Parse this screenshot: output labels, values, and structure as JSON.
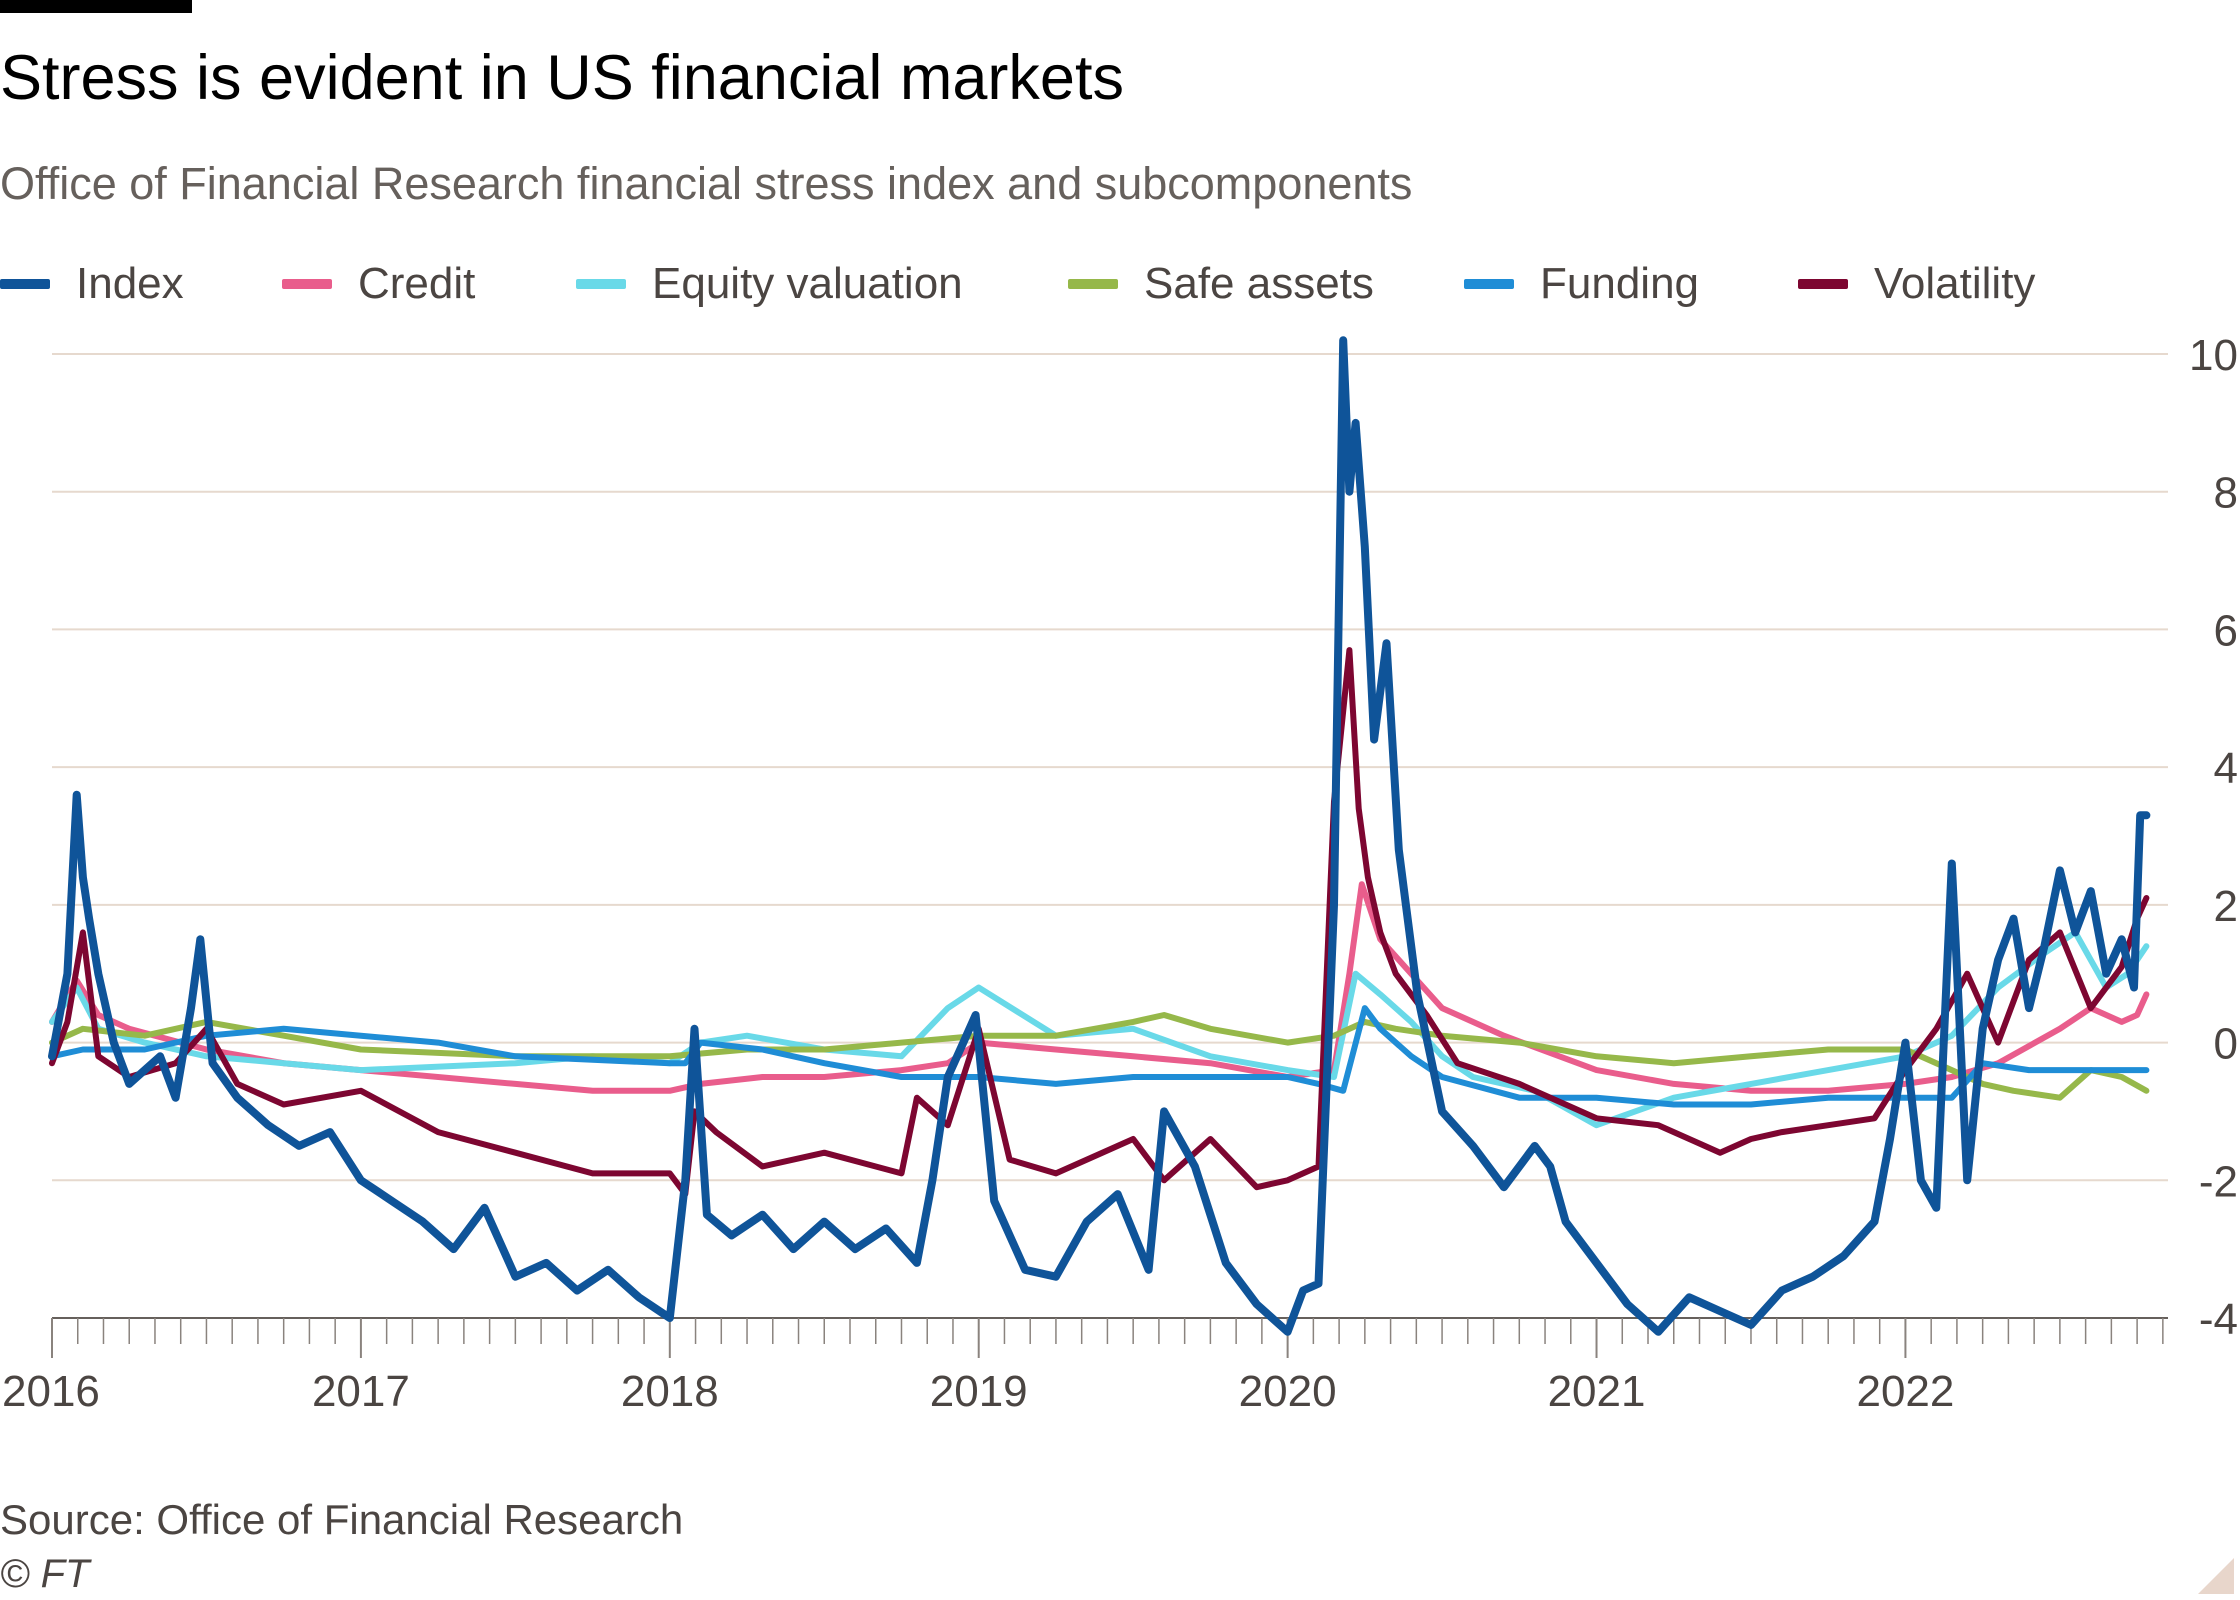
{
  "title": "Stress is evident in US financial markets",
  "subtitle": "Office of Financial Research financial stress index and subcomponents",
  "source": "Source: Office of Financial Research",
  "copyright": "© FT",
  "legend": [
    {
      "name": "Index",
      "color": "#0f5499"
    },
    {
      "name": "Credit",
      "color": "#e95d8c"
    },
    {
      "name": "Equity valuation",
      "color": "#69d9e8"
    },
    {
      "name": "Safe assets",
      "color": "#96b84a"
    },
    {
      "name": "Funding",
      "color": "#1f8dd6"
    },
    {
      "name": "Volatility",
      "color": "#7d0631"
    }
  ],
  "chart_data": {
    "type": "line",
    "title": "Stress is evident in US financial markets",
    "subtitle": "Office of Financial Research financial stress index and subcomponents",
    "xlabel": "",
    "ylabel": "",
    "xlim": [
      2016.0,
      2022.85
    ],
    "ylim": [
      -4,
      10
    ],
    "yticks": [
      -4,
      -2,
      0,
      2,
      4,
      6,
      8,
      10
    ],
    "ytick_labels": [
      "-4",
      "-2",
      "0",
      "2",
      "4",
      "6",
      "8",
      "10"
    ],
    "xticks": [
      2016,
      2017,
      2018,
      2019,
      2020,
      2021,
      2022
    ],
    "xtick_labels": [
      "2016",
      "2017",
      "2018",
      "2019",
      "2020",
      "2021",
      "2022"
    ],
    "grid": "horizontal",
    "legend_position": "top",
    "series": [
      {
        "name": "Credit",
        "color": "#e95d8c",
        "x": [
          2016.0,
          2016.08,
          2016.15,
          2016.25,
          2016.5,
          2016.75,
          2017.0,
          2017.5,
          2017.75,
          2018.0,
          2018.1,
          2018.3,
          2018.5,
          2018.75,
          2018.9,
          2019.0,
          2019.25,
          2019.5,
          2019.75,
          2020.0,
          2020.15,
          2020.2,
          2020.24,
          2020.3,
          2020.4,
          2020.5,
          2020.7,
          2021.0,
          2021.25,
          2021.5,
          2021.75,
          2022.0,
          2022.15,
          2022.3,
          2022.5,
          2022.6,
          2022.7,
          2022.75,
          2022.78
        ],
        "values": [
          0.3,
          0.9,
          0.4,
          0.2,
          -0.1,
          -0.3,
          -0.4,
          -0.6,
          -0.7,
          -0.7,
          -0.6,
          -0.5,
          -0.5,
          -0.4,
          -0.3,
          0.0,
          -0.1,
          -0.2,
          -0.3,
          -0.5,
          -0.4,
          1.0,
          2.3,
          1.5,
          1.0,
          0.5,
          0.1,
          -0.4,
          -0.6,
          -0.7,
          -0.7,
          -0.6,
          -0.5,
          -0.3,
          0.2,
          0.5,
          0.3,
          0.4,
          0.7
        ]
      },
      {
        "name": "Equity valuation",
        "color": "#69d9e8",
        "x": [
          2016.0,
          2016.08,
          2016.15,
          2016.3,
          2016.5,
          2016.75,
          2017.0,
          2017.5,
          2017.75,
          2018.0,
          2018.1,
          2018.25,
          2018.5,
          2018.75,
          2018.9,
          2019.0,
          2019.25,
          2019.5,
          2019.75,
          2020.0,
          2020.15,
          2020.22,
          2020.3,
          2020.4,
          2020.5,
          2020.6,
          2020.8,
          2021.0,
          2021.25,
          2021.5,
          2021.75,
          2022.0,
          2022.15,
          2022.3,
          2022.45,
          2022.55,
          2022.65,
          2022.72,
          2022.78
        ],
        "values": [
          0.3,
          0.8,
          0.2,
          0.0,
          -0.2,
          -0.3,
          -0.4,
          -0.3,
          -0.2,
          -0.3,
          0.0,
          0.1,
          -0.1,
          -0.2,
          0.5,
          0.8,
          0.1,
          0.2,
          -0.2,
          -0.4,
          -0.5,
          1.0,
          0.7,
          0.3,
          -0.2,
          -0.5,
          -0.7,
          -1.2,
          -0.8,
          -0.6,
          -0.4,
          -0.2,
          0.1,
          0.8,
          1.3,
          1.6,
          0.8,
          1.0,
          1.4
        ]
      },
      {
        "name": "Safe assets",
        "color": "#96b84a",
        "x": [
          2016.0,
          2016.1,
          2016.3,
          2016.5,
          2016.75,
          2017.0,
          2017.5,
          2018.0,
          2018.25,
          2018.5,
          2018.75,
          2019.0,
          2019.25,
          2019.5,
          2019.6,
          2019.75,
          2020.0,
          2020.15,
          2020.25,
          2020.35,
          2020.5,
          2020.75,
          2021.0,
          2021.25,
          2021.5,
          2021.75,
          2022.0,
          2022.15,
          2022.25,
          2022.35,
          2022.5,
          2022.6,
          2022.7,
          2022.78
        ],
        "values": [
          0.0,
          0.2,
          0.1,
          0.3,
          0.1,
          -0.1,
          -0.2,
          -0.2,
          -0.1,
          -0.1,
          0.0,
          0.1,
          0.1,
          0.3,
          0.4,
          0.2,
          0.0,
          0.1,
          0.3,
          0.2,
          0.1,
          0.0,
          -0.2,
          -0.3,
          -0.2,
          -0.1,
          -0.1,
          -0.4,
          -0.6,
          -0.7,
          -0.8,
          -0.4,
          -0.5,
          -0.7
        ]
      },
      {
        "name": "Funding",
        "color": "#1f8dd6",
        "x": [
          2016.0,
          2016.1,
          2016.3,
          2016.5,
          2016.75,
          2017.0,
          2017.25,
          2017.5,
          2018.0,
          2018.05,
          2018.1,
          2018.3,
          2018.5,
          2018.75,
          2019.0,
          2019.25,
          2019.5,
          2019.75,
          2020.0,
          2020.1,
          2020.18,
          2020.25,
          2020.3,
          2020.4,
          2020.5,
          2020.75,
          2021.0,
          2021.25,
          2021.5,
          2021.75,
          2022.0,
          2022.15,
          2022.25,
          2022.4,
          2022.5,
          2022.65,
          2022.78
        ],
        "values": [
          -0.2,
          -0.1,
          -0.1,
          0.1,
          0.2,
          0.1,
          0.0,
          -0.2,
          -0.3,
          -0.3,
          0.0,
          -0.1,
          -0.3,
          -0.5,
          -0.5,
          -0.6,
          -0.5,
          -0.5,
          -0.5,
          -0.6,
          -0.7,
          0.5,
          0.2,
          -0.2,
          -0.5,
          -0.8,
          -0.8,
          -0.9,
          -0.9,
          -0.8,
          -0.8,
          -0.8,
          -0.3,
          -0.4,
          -0.4,
          -0.4,
          -0.4
        ]
      },
      {
        "name": "Volatility",
        "color": "#7d0631",
        "x": [
          2016.0,
          2016.05,
          2016.1,
          2016.15,
          2016.25,
          2016.4,
          2016.5,
          2016.6,
          2016.75,
          2017.0,
          2017.25,
          2017.5,
          2017.75,
          2018.0,
          2018.05,
          2018.08,
          2018.15,
          2018.3,
          2018.5,
          2018.75,
          2018.8,
          2018.9,
          2019.0,
          2019.1,
          2019.25,
          2019.4,
          2019.5,
          2019.6,
          2019.75,
          2019.9,
          2020.0,
          2020.1,
          2020.15,
          2020.2,
          2020.23,
          2020.26,
          2020.3,
          2020.35,
          2020.45,
          2020.55,
          2020.75,
          2021.0,
          2021.2,
          2021.4,
          2021.5,
          2021.6,
          2021.75,
          2021.9,
          2022.0,
          2022.1,
          2022.2,
          2022.3,
          2022.4,
          2022.5,
          2022.6,
          2022.7,
          2022.75,
          2022.78
        ],
        "values": [
          -0.3,
          0.3,
          1.6,
          -0.2,
          -0.5,
          -0.3,
          0.2,
          -0.6,
          -0.9,
          -0.7,
          -1.3,
          -1.6,
          -1.9,
          -1.9,
          -2.2,
          -1.0,
          -1.3,
          -1.8,
          -1.6,
          -1.9,
          -0.8,
          -1.2,
          0.2,
          -1.7,
          -1.9,
          -1.6,
          -1.4,
          -2.0,
          -1.4,
          -2.1,
          -2.0,
          -1.8,
          3.5,
          5.7,
          3.4,
          2.4,
          1.6,
          1.0,
          0.4,
          -0.3,
          -0.6,
          -1.1,
          -1.2,
          -1.6,
          -1.4,
          -1.3,
          -1.2,
          -1.1,
          -0.4,
          0.2,
          1.0,
          0.0,
          1.2,
          1.6,
          0.5,
          1.1,
          1.8,
          2.1
        ]
      },
      {
        "name": "Index",
        "color": "#0f5499",
        "x": [
          2016.0,
          2016.05,
          2016.08,
          2016.1,
          2016.12,
          2016.15,
          2016.2,
          2016.25,
          2016.35,
          2016.4,
          2016.45,
          2016.48,
          2016.52,
          2016.6,
          2016.7,
          2016.8,
          2016.9,
          2017.0,
          2017.1,
          2017.2,
          2017.3,
          2017.4,
          2017.5,
          2017.6,
          2017.7,
          2017.8,
          2017.9,
          2018.0,
          2018.05,
          2018.08,
          2018.12,
          2018.2,
          2018.3,
          2018.4,
          2018.5,
          2018.6,
          2018.7,
          2018.8,
          2018.85,
          2018.9,
          2018.95,
          2018.99,
          2019.05,
          2019.15,
          2019.25,
          2019.35,
          2019.45,
          2019.55,
          2019.6,
          2019.7,
          2019.8,
          2019.9,
          2020.0,
          2020.05,
          2020.1,
          2020.15,
          2020.18,
          2020.2,
          2020.22,
          2020.25,
          2020.28,
          2020.32,
          2020.36,
          2020.42,
          2020.5,
          2020.6,
          2020.7,
          2020.8,
          2020.85,
          2020.9,
          2021.0,
          2021.1,
          2021.2,
          2021.3,
          2021.4,
          2021.5,
          2021.6,
          2021.7,
          2021.8,
          2021.9,
          2021.95,
          2022.0,
          2022.05,
          2022.1,
          2022.15,
          2022.2,
          2022.25,
          2022.3,
          2022.35,
          2022.4,
          2022.45,
          2022.5,
          2022.55,
          2022.6,
          2022.65,
          2022.7,
          2022.74,
          2022.76,
          2022.78
        ],
        "values": [
          -0.2,
          1.0,
          3.6,
          2.4,
          1.8,
          1.0,
          0.0,
          -0.6,
          -0.2,
          -0.8,
          0.5,
          1.5,
          -0.3,
          -0.8,
          -1.2,
          -1.5,
          -1.3,
          -2.0,
          -2.3,
          -2.6,
          -3.0,
          -2.4,
          -3.4,
          -3.2,
          -3.6,
          -3.3,
          -3.7,
          -4.0,
          -2.0,
          0.2,
          -2.5,
          -2.8,
          -2.5,
          -3.0,
          -2.6,
          -3.0,
          -2.7,
          -3.2,
          -2.0,
          -0.5,
          0.0,
          0.4,
          -2.3,
          -3.3,
          -3.4,
          -2.6,
          -2.2,
          -3.3,
          -1.0,
          -1.8,
          -3.2,
          -3.8,
          -4.2,
          -3.6,
          -3.5,
          2.0,
          10.2,
          8.0,
          9.0,
          7.2,
          4.4,
          5.8,
          2.8,
          0.7,
          -1.0,
          -1.5,
          -2.1,
          -1.5,
          -1.8,
          -2.6,
          -3.2,
          -3.8,
          -4.2,
          -3.7,
          -3.9,
          -4.1,
          -3.6,
          -3.4,
          -3.1,
          -2.6,
          -1.4,
          0.0,
          -2.0,
          -2.4,
          2.6,
          -2.0,
          0.2,
          1.2,
          1.8,
          0.5,
          1.4,
          2.5,
          1.6,
          2.2,
          1.0,
          1.5,
          0.8,
          3.3,
          3.3
        ]
      }
    ]
  }
}
